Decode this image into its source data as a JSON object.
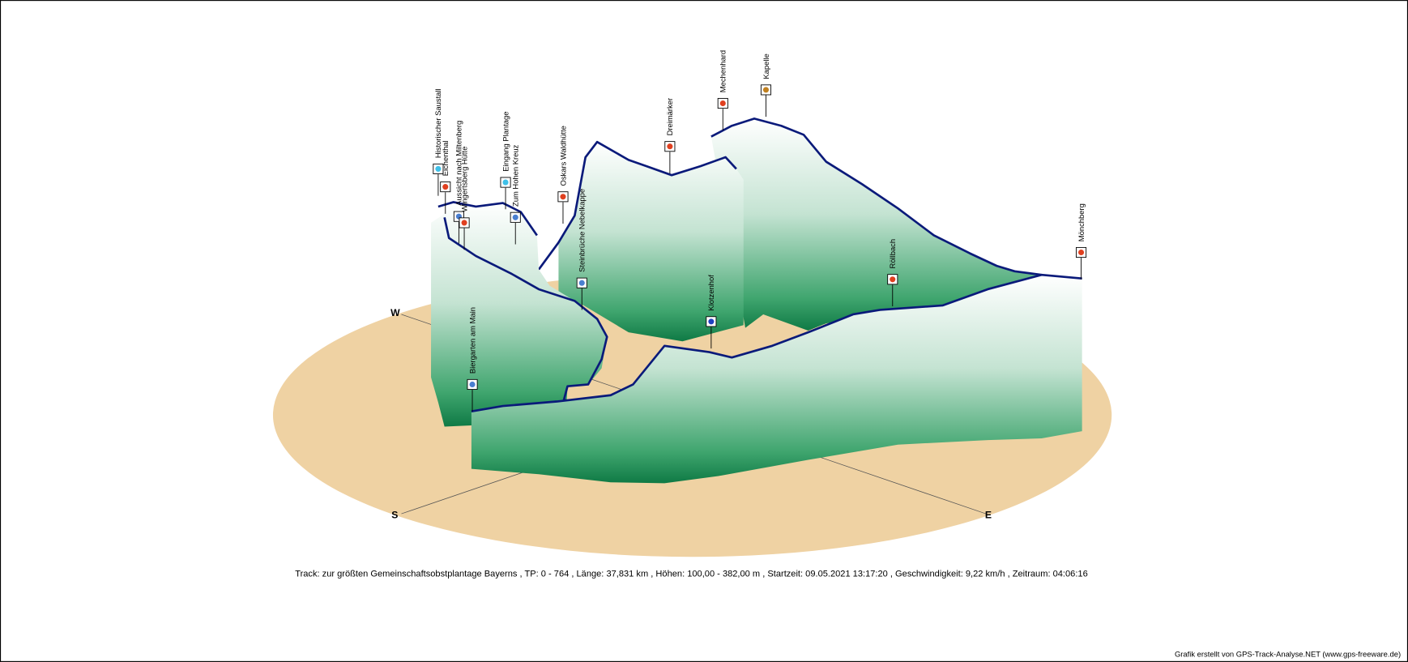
{
  "compass": {
    "west": "W",
    "south": "S",
    "east": "E"
  },
  "waypoints": [
    "Historischer Saustall",
    "Eichenthal",
    "Aussicht nach Miltenberg",
    "Wingertsberg Hütte",
    "Eingang Plantage",
    "Zum Hohen Kreuz",
    "Oskars Waldhütte",
    "Steinbrüche Nebelkappe",
    "Dreimärker",
    "Mechenhard",
    "Kapelle",
    "Klotzenhof",
    "Röllbach",
    "Mönchberg",
    "Biergarten am Main"
  ],
  "footer": "Track: zur größten Gemeinschaftsobstplantage Bayerns  ,  TP: 0 - 764  ,  Länge: 37,831 km  ,  Höhen: 100,00 - 382,00 m  ,  Startzeit: 09.05.2021 13:17:20  ,  Geschwindigkeit: 9,22 km/h  ,  Zeitraum: 04:06:16",
  "credit": "Grafik erstellt von GPS-Track-Analyse.NET (www.gps-freeware.de)"
}
